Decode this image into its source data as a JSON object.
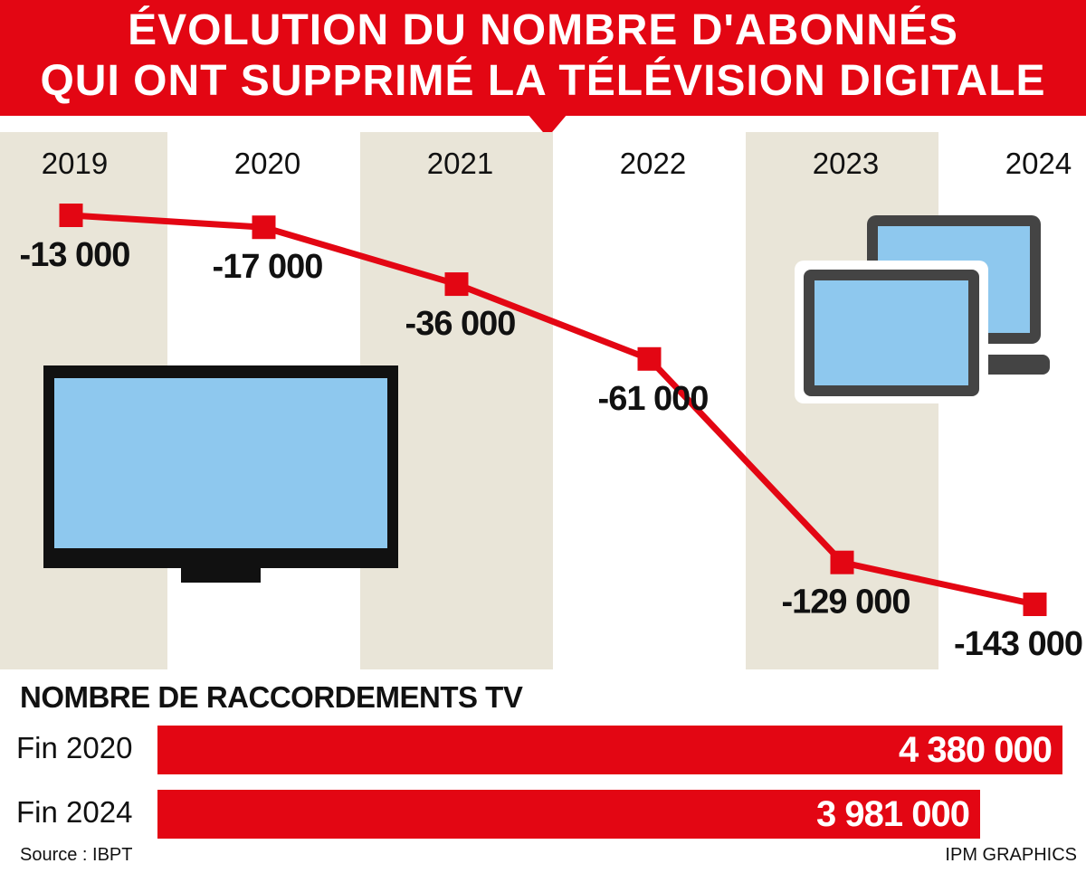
{
  "title": {
    "line1": "ÉVOLUTION DU NOMBRE D'ABONNÉS",
    "line2": "QUI ONT SUPPRIMÉ LA TÉLÉVISION DIGITALE"
  },
  "chart_data": [
    {
      "type": "line",
      "title": "ÉVOLUTION DU NOMBRE D'ABONNÉS QUI ONT SUPPRIMÉ LA TÉLÉVISION DIGITALE",
      "categories": [
        "2019",
        "2020",
        "2021",
        "2022",
        "2023",
        "2024"
      ],
      "series": [
        {
          "values": [
            -13000,
            -17000,
            -36000,
            -61000,
            -129000,
            -143000
          ],
          "labels": [
            "-13 000",
            "-17 000",
            "-36 000",
            "-61 000",
            "-129 000",
            "-143 000"
          ]
        }
      ],
      "ylim": [
        -143000,
        -13000
      ],
      "grid": false,
      "legend": "none"
    },
    {
      "type": "bar",
      "orientation": "horizontal",
      "title": "NOMBRE DE RACCORDEMENTS TV",
      "categories": [
        "Fin 2020",
        "Fin 2024"
      ],
      "values": [
        4380000,
        3981000
      ],
      "value_labels": [
        "4 380 000",
        "3 981 000"
      ],
      "xlim": [
        0,
        4380000
      ]
    }
  ],
  "source": "Source : IBPT",
  "credit": "IPM GRAPHICS",
  "colors": {
    "accent": "#e30613",
    "column_band": "#e9e5d8",
    "screen": "#8ec8ee",
    "tv_frame": "#111111",
    "monitor_frame": "#444444"
  },
  "icons": [
    "television-icon",
    "computer-monitors-icon"
  ]
}
